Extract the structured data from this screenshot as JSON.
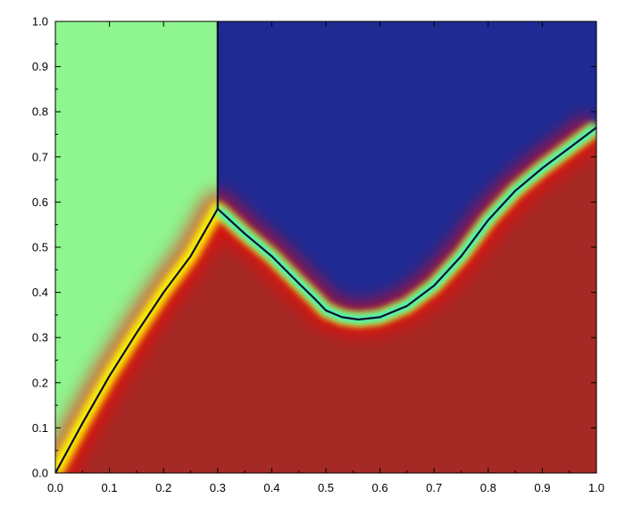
{
  "chart_data": {
    "type": "heatmap",
    "title": "",
    "xlabel": "",
    "ylabel": "",
    "xlim": [
      0.0,
      1.0
    ],
    "ylim": [
      0.0,
      1.0
    ],
    "x_ticks": [
      "0.0",
      "0.1",
      "0.2",
      "0.3",
      "0.4",
      "0.5",
      "0.6",
      "0.7",
      "0.8",
      "0.9",
      "1.0"
    ],
    "y_ticks": [
      "0.0",
      "0.1",
      "0.2",
      "0.3",
      "0.4",
      "0.5",
      "0.6",
      "0.7",
      "0.8",
      "0.9",
      "1.0"
    ],
    "grid": false,
    "legend": "none",
    "colormap": [
      "#00007f",
      "#0000ff",
      "#00ffff",
      "#7fff7f",
      "#ffff00",
      "#ff0000",
      "#7f0000"
    ],
    "regions": [
      {
        "name": "left region",
        "color": "#8ef58f"
      },
      {
        "name": "upper region",
        "color": "#1f2a93"
      },
      {
        "name": "lower region",
        "color": "#a52a26"
      }
    ],
    "boundary_color": "#0b1030",
    "boundaries": [
      {
        "name": "lower-left front",
        "x": [
          0.0,
          0.05,
          0.1,
          0.15,
          0.2,
          0.25,
          0.3
        ],
        "y": [
          0.0,
          0.11,
          0.215,
          0.31,
          0.4,
          0.48,
          0.585
        ]
      },
      {
        "name": "vertical line",
        "x": [
          0.3,
          0.3
        ],
        "y": [
          0.585,
          1.0
        ]
      },
      {
        "name": "upper front",
        "x": [
          0.3,
          0.35,
          0.4,
          0.45,
          0.48,
          0.5,
          0.53,
          0.56,
          0.6,
          0.65,
          0.7,
          0.75,
          0.8,
          0.85,
          0.9,
          0.95,
          1.0
        ],
        "y": [
          0.585,
          0.53,
          0.48,
          0.42,
          0.385,
          0.36,
          0.345,
          0.34,
          0.345,
          0.37,
          0.415,
          0.48,
          0.56,
          0.625,
          0.675,
          0.72,
          0.765
        ]
      }
    ]
  }
}
